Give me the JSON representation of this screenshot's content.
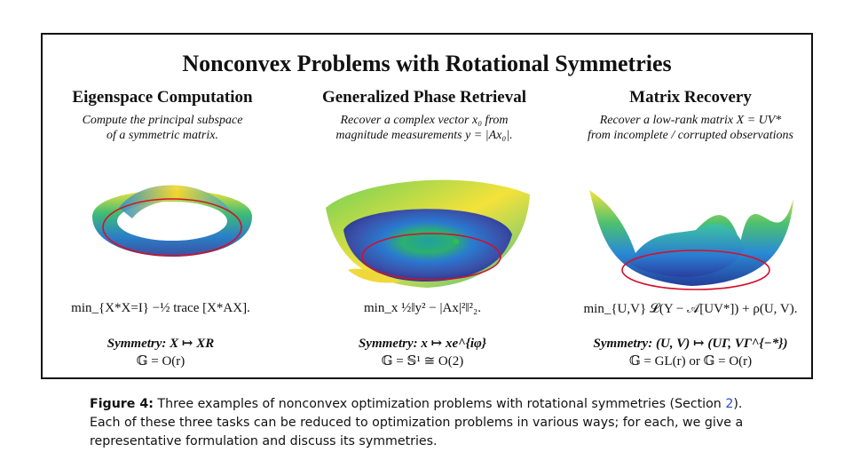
{
  "figure": {
    "title": "Nonconvex Problems with Rotational Symmetries",
    "panels": [
      {
        "title": "Eigenspace Computation",
        "desc_line1": "Compute the principal subspace",
        "desc_line2": "of a symmetric matrix.",
        "formula": "min_{X*X=I} −½ trace [X*AX].",
        "symmetry": "Symmetry: X ↦ XR",
        "group": "𝔾 = O(r)"
      },
      {
        "title": "Generalized Phase Retrieval",
        "desc_line1": "Recover a complex vector x₀ from",
        "desc_line2": "magnitude measurements y = |Ax₀|.",
        "formula": "min_x ½‖y² − |Ax|²‖²₂.",
        "symmetry": "Symmetry: x ↦ xe^{iφ}",
        "group": "𝔾 = 𝕊¹ ≅ O(2)"
      },
      {
        "title": "Matrix Recovery",
        "desc_line1": "Recover a low-rank matrix X = UV*",
        "desc_line2": "from incomplete / corrupted observations",
        "formula": "min_{U,V} 𝓛(Y − 𝒜[UV*]) + ρ(U, V).",
        "symmetry": "Symmetry: (U, V) ↦ (UΓ, VΓ^{−*})",
        "group": "𝔾 = GL(r) or 𝔾 = O(r)"
      }
    ]
  },
  "caption": {
    "label": "Figure 4:",
    "text_before_ref": " Three examples of nonconvex optimization problems with rotational symmetries (Section ",
    "ref": "2",
    "text_after_ref": ").",
    "line2": "Each of these three tasks can be reduced to optimization problems in various ways; for each, we give a",
    "line3": "representative formulation and discuss its symmetries."
  }
}
